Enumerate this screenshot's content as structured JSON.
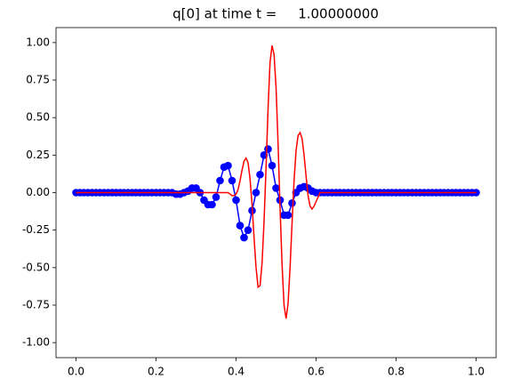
{
  "chart_data": {
    "type": "line",
    "title": "q[0] at time t =     1.00000000",
    "xlim": [
      -0.05,
      1.05
    ],
    "ylim": [
      -1.1,
      1.1
    ],
    "xticks": [
      {
        "value": 0,
        "label": "0.0"
      },
      0.2,
      0.4,
      0.6,
      0.8,
      {
        "value": 1,
        "label": "1.0"
      }
    ],
    "yticks": [
      {
        "value": -1,
        "label": "-1.00"
      },
      -0.75,
      {
        "value": -0.5,
        "label": "-0.50"
      },
      -0.25,
      {
        "value": 0,
        "label": "0.00"
      },
      0.25,
      {
        "value": 0.5,
        "label": "0.50"
      },
      0.75,
      {
        "value": 1,
        "label": "1.00"
      }
    ],
    "series": [
      {
        "color": "#0000ff",
        "marker": "o",
        "x": [
          0,
          0.01,
          0.02,
          0.03,
          0.04,
          0.05,
          0.06,
          0.07,
          0.08,
          0.09,
          0.1,
          0.11,
          0.12,
          0.13,
          0.14,
          0.15,
          0.16,
          0.17,
          0.18,
          0.19,
          0.2,
          0.21,
          0.22,
          0.23,
          0.24,
          0.25,
          0.26,
          0.27,
          0.28,
          0.29,
          0.3,
          0.31,
          0.32,
          0.33,
          0.34,
          0.35,
          0.36,
          0.37,
          0.38,
          0.39,
          0.4,
          0.41,
          0.42,
          0.43,
          0.44,
          0.45,
          0.46,
          0.47,
          0.48,
          0.49,
          0.5,
          0.51,
          0.52,
          0.53,
          0.54,
          0.55,
          0.56,
          0.57,
          0.58,
          0.59,
          0.6,
          0.61,
          0.62,
          0.63,
          0.64,
          0.65,
          0.66,
          0.67,
          0.68,
          0.69,
          0.7,
          0.71,
          0.72,
          0.73,
          0.74,
          0.75,
          0.76,
          0.77,
          0.78,
          0.79,
          0.8,
          0.81,
          0.82,
          0.83,
          0.84,
          0.85,
          0.86,
          0.87,
          0.88,
          0.89,
          0.9,
          0.91,
          0.92,
          0.93,
          0.94,
          0.95,
          0.96,
          0.97,
          0.98,
          0.99,
          1
        ],
        "values": [
          0,
          0,
          0,
          0,
          0,
          0,
          0,
          0,
          0,
          0,
          0,
          0,
          0,
          0,
          0,
          0,
          0,
          0,
          0,
          0,
          0,
          0,
          0,
          0,
          0,
          -0.01,
          -0.01,
          0,
          0.01,
          0.03,
          0.03,
          0,
          -0.05,
          -0.08,
          -0.08,
          -0.03,
          0.08,
          0.17,
          0.18,
          0.08,
          -0.05,
          -0.22,
          -0.3,
          -0.25,
          -0.12,
          0,
          0.12,
          0.25,
          0.29,
          0.18,
          0.03,
          -0.05,
          -0.15,
          -0.15,
          -0.07,
          0,
          0.03,
          0.04,
          0.03,
          0.01,
          0,
          0,
          0,
          0,
          0,
          0,
          0,
          0,
          0,
          0,
          0,
          0,
          0,
          0,
          0,
          0,
          0,
          0,
          0,
          0,
          0,
          0,
          0,
          0,
          0,
          0,
          0,
          0,
          0,
          0,
          0,
          0,
          0,
          0,
          0,
          0,
          0,
          0,
          0,
          0,
          0
        ]
      },
      {
        "color": "#ff0000",
        "x": [
          0,
          0.3,
          0.38,
          0.385,
          0.39,
          0.395,
          0.4,
          0.405,
          0.41,
          0.415,
          0.42,
          0.425,
          0.43,
          0.435,
          0.44,
          0.445,
          0.45,
          0.455,
          0.46,
          0.465,
          0.47,
          0.475,
          0.48,
          0.485,
          0.49,
          0.495,
          0.5,
          0.505,
          0.51,
          0.515,
          0.52,
          0.525,
          0.53,
          0.535,
          0.54,
          0.545,
          0.55,
          0.555,
          0.56,
          0.565,
          0.57,
          0.575,
          0.58,
          0.585,
          0.59,
          0.595,
          0.6,
          0.605,
          0.61,
          1
        ],
        "values": [
          0,
          0,
          0,
          -0.01,
          -0.02,
          -0.02,
          -0.01,
          0.02,
          0.08,
          0.15,
          0.21,
          0.23,
          0.2,
          0.09,
          -0.08,
          -0.3,
          -0.5,
          -0.63,
          -0.62,
          -0.47,
          -0.19,
          0.17,
          0.56,
          0.87,
          0.98,
          0.92,
          0.7,
          0.33,
          -0.1,
          -0.48,
          -0.75,
          -0.84,
          -0.74,
          -0.5,
          -0.2,
          0.08,
          0.28,
          0.38,
          0.4,
          0.36,
          0.25,
          0.11,
          -0.02,
          -0.09,
          -0.11,
          -0.09,
          -0.06,
          -0.03,
          0,
          0
        ]
      }
    ]
  }
}
